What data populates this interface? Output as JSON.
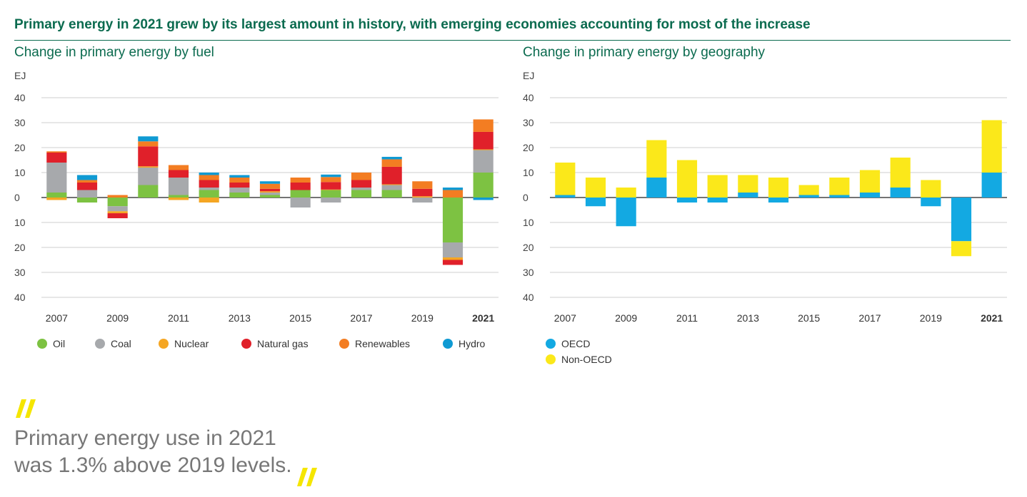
{
  "headline": "Primary energy in 2021 grew by its largest amount in history, with emerging economies accounting for most of the increase",
  "quote": {
    "line1": "Primary energy use in 2021",
    "line2": "was 1.3% above 2019 levels.",
    "mark_color": "#f5e600"
  },
  "chart_data": [
    {
      "type": "bar",
      "stacked": true,
      "title": "Change in primary energy by fuel",
      "ylabel": "EJ",
      "ylim": [
        -40,
        40
      ],
      "yticks": [
        40,
        30,
        20,
        10,
        0,
        -10,
        -20,
        -30,
        -40
      ],
      "ytick_labels": [
        "40",
        "30",
        "20",
        "10",
        "0",
        "10",
        "20",
        "30",
        "40"
      ],
      "categories": [
        2007,
        2008,
        2009,
        2010,
        2011,
        2012,
        2013,
        2014,
        2015,
        2016,
        2017,
        2018,
        2019,
        2020,
        2021
      ],
      "xtick_labels": [
        "2007",
        "",
        "2009",
        "",
        "2011",
        "",
        "2013",
        "",
        "2015",
        "",
        "2017",
        "",
        "2019",
        "",
        "2021"
      ],
      "bold_tick": "2021",
      "grid": true,
      "legend": "bottom",
      "series": [
        {
          "name": "Oil",
          "color": "#7dc242",
          "values": [
            2,
            -2,
            -3.5,
            5,
            1,
            3,
            2,
            1,
            3,
            3,
            3,
            3,
            0,
            -18,
            10
          ]
        },
        {
          "name": "Coal",
          "color": "#a7a9ac",
          "values": [
            12,
            3,
            -2,
            7,
            7,
            1,
            2,
            1,
            -4,
            -2,
            1,
            2,
            -2,
            -6,
            9
          ]
        },
        {
          "name": "Nuclear",
          "color": "#f5a623",
          "values": [
            -1,
            0,
            -0.8,
            0.5,
            -1,
            -2,
            0,
            0.5,
            0,
            0.2,
            0,
            0.3,
            0.5,
            -1,
            0.3
          ]
        },
        {
          "name": "Natural gas",
          "color": "#e0202a",
          "values": [
            4,
            3,
            -2,
            8,
            3,
            3,
            2,
            1,
            3,
            3,
            3,
            7,
            3,
            -2,
            7
          ]
        },
        {
          "name": "Renewables",
          "color": "#f37d22",
          "values": [
            0.5,
            1,
            1,
            2,
            2,
            2,
            2,
            2,
            2,
            2,
            3,
            3,
            3,
            3,
            5
          ]
        },
        {
          "name": "Hydro",
          "color": "#0f9ad3",
          "values": [
            0,
            2,
            0,
            2,
            0,
            1,
            1,
            1,
            0,
            1,
            0,
            1,
            0,
            1,
            -1
          ]
        }
      ]
    },
    {
      "type": "bar",
      "stacked": true,
      "title": "Change in primary energy by geography",
      "ylabel": "EJ",
      "ylim": [
        -40,
        40
      ],
      "yticks": [
        40,
        30,
        20,
        10,
        0,
        -10,
        -20,
        -30,
        -40
      ],
      "ytick_labels": [
        "40",
        "30",
        "20",
        "10",
        "0",
        "10",
        "20",
        "30",
        "40"
      ],
      "categories": [
        2007,
        2008,
        2009,
        2010,
        2011,
        2012,
        2013,
        2014,
        2015,
        2016,
        2017,
        2018,
        2019,
        2020,
        2021
      ],
      "xtick_labels": [
        "2007",
        "",
        "2009",
        "",
        "2011",
        "",
        "2013",
        "",
        "2015",
        "",
        "2017",
        "",
        "2019",
        "",
        "2021"
      ],
      "bold_tick": "2021",
      "grid": true,
      "legend": "bottom",
      "series": [
        {
          "name": "OECD",
          "color": "#13a9e2",
          "values": [
            1,
            -3.5,
            -11.5,
            8,
            -2,
            -2,
            2,
            -2,
            1,
            1,
            2,
            4,
            -3.5,
            -17.5,
            10
          ]
        },
        {
          "name": "Non-OECD",
          "color": "#fbe81a",
          "values": [
            13,
            8,
            4,
            15,
            15,
            9,
            7,
            8,
            4,
            7,
            9,
            12,
            7,
            -6,
            21
          ]
        }
      ]
    }
  ]
}
